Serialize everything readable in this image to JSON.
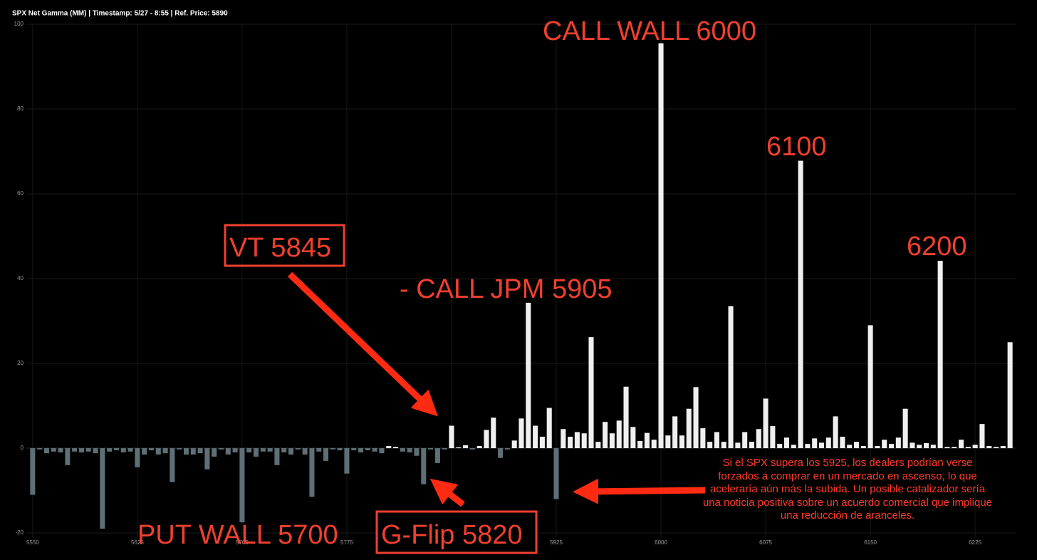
{
  "chart_data": {
    "type": "bar",
    "title": "SPX Net Gamma (MM) | Timestamp: 5/27 - 8:55  | Ref. Price: 5890",
    "x": [
      5550,
      5555,
      5560,
      5565,
      5570,
      5575,
      5580,
      5585,
      5590,
      5595,
      5600,
      5605,
      5610,
      5615,
      5620,
      5625,
      5630,
      5635,
      5640,
      5645,
      5650,
      5655,
      5660,
      5665,
      5670,
      5675,
      5680,
      5685,
      5690,
      5695,
      5700,
      5705,
      5710,
      5715,
      5720,
      5725,
      5730,
      5735,
      5740,
      5745,
      5750,
      5755,
      5760,
      5765,
      5770,
      5775,
      5780,
      5785,
      5790,
      5795,
      5800,
      5805,
      5810,
      5815,
      5820,
      5825,
      5830,
      5835,
      5840,
      5845,
      5850,
      5855,
      5860,
      5865,
      5870,
      5875,
      5880,
      5885,
      5890,
      5895,
      5900,
      5905,
      5910,
      5915,
      5920,
      5925,
      5930,
      5935,
      5940,
      5945,
      5950,
      5955,
      5960,
      5965,
      5970,
      5975,
      5980,
      5985,
      5990,
      5995,
      6000,
      6005,
      6010,
      6015,
      6020,
      6025,
      6030,
      6035,
      6040,
      6045,
      6050,
      6055,
      6060,
      6065,
      6070,
      6075,
      6080,
      6085,
      6090,
      6095,
      6100,
      6105,
      6110,
      6115,
      6120,
      6125,
      6130,
      6135,
      6140,
      6145,
      6150,
      6155,
      6160,
      6165,
      6170,
      6175,
      6180,
      6185,
      6190,
      6195,
      6200,
      6205,
      6210,
      6215,
      6220,
      6225,
      6230,
      6235,
      6240,
      6245,
      6250
    ],
    "values": [
      -11,
      -0.3,
      -1.2,
      -0.8,
      -1,
      -4,
      -0.8,
      -1,
      -0.8,
      -1.2,
      -19,
      -0.8,
      -0.5,
      -1,
      -0.8,
      -4.5,
      -1.5,
      -0.5,
      -1.5,
      -1.2,
      -8,
      -0.3,
      -1.5,
      -1.5,
      -1.2,
      -5,
      -2,
      -0.3,
      -1.5,
      -1,
      -17.5,
      -1,
      -2,
      -0.8,
      -0.8,
      -4,
      -1,
      -1.5,
      -0.3,
      -1.5,
      -11.5,
      -0.8,
      -3,
      -0.3,
      -0.5,
      -6,
      -0.5,
      -1,
      -0.5,
      -0.8,
      -1.2,
      0.5,
      0.3,
      -0.8,
      -1,
      -1.8,
      -8.5,
      -0.3,
      -3.5,
      -0.3,
      5.3,
      0.2,
      0.7,
      -0.3,
      0.5,
      4.3,
      7.2,
      -2.3,
      -0.3,
      1.8,
      7,
      34.3,
      5.3,
      2.7,
      9.5,
      -12,
      4.5,
      2.7,
      3.8,
      3.5,
      26.2,
      1.5,
      6.2,
      3.5,
      6.5,
      14.5,
      5,
      1.7,
      3.6,
      2,
      95.5,
      3,
      7.5,
      3,
      9.3,
      14.4,
      4.7,
      1.5,
      3.8,
      1.5,
      33.5,
      1.3,
      3.8,
      1.5,
      4.5,
      11.7,
      5.2,
      1,
      2.5,
      0.8,
      67.8,
      1,
      2.3,
      1.3,
      2.5,
      7.5,
      2.7,
      0.8,
      1.5,
      0.5,
      29,
      0.5,
      2,
      1,
      2.5,
      9.3,
      1.3,
      0.8,
      1.2,
      0.8,
      44.2,
      0.3,
      0.3,
      2,
      0.3,
      0.8,
      5.7,
      0.5,
      0.3,
      0.5,
      25
    ],
    "positive_color": "#f0f0f0",
    "negative_color": "#5e6f75",
    "xlim": [
      5546,
      6254
    ],
    "xticks": [
      5550,
      5625,
      5700,
      5775,
      5850,
      5925,
      6000,
      6075,
      6150,
      6225
    ],
    "ylim": [
      -21,
      100
    ],
    "yticks": [
      -20,
      0,
      20,
      40,
      60,
      80,
      100
    ],
    "grid": true,
    "annotations": [
      "CALL WALL 6000",
      "6100",
      "6200",
      "VT 5845",
      "- CALL JPM 5905",
      "PUT WALL 5700",
      "G-Flip 5820",
      "Si el SPX supera los 5925, los dealers podrían verse forzados a comprar en un mercado en ascenso, lo que aceleraría aún más la subida. Un posible catalizador sería una noticia positiva sobre un acuerdo comercial que implique una reducción de aranceles."
    ]
  }
}
